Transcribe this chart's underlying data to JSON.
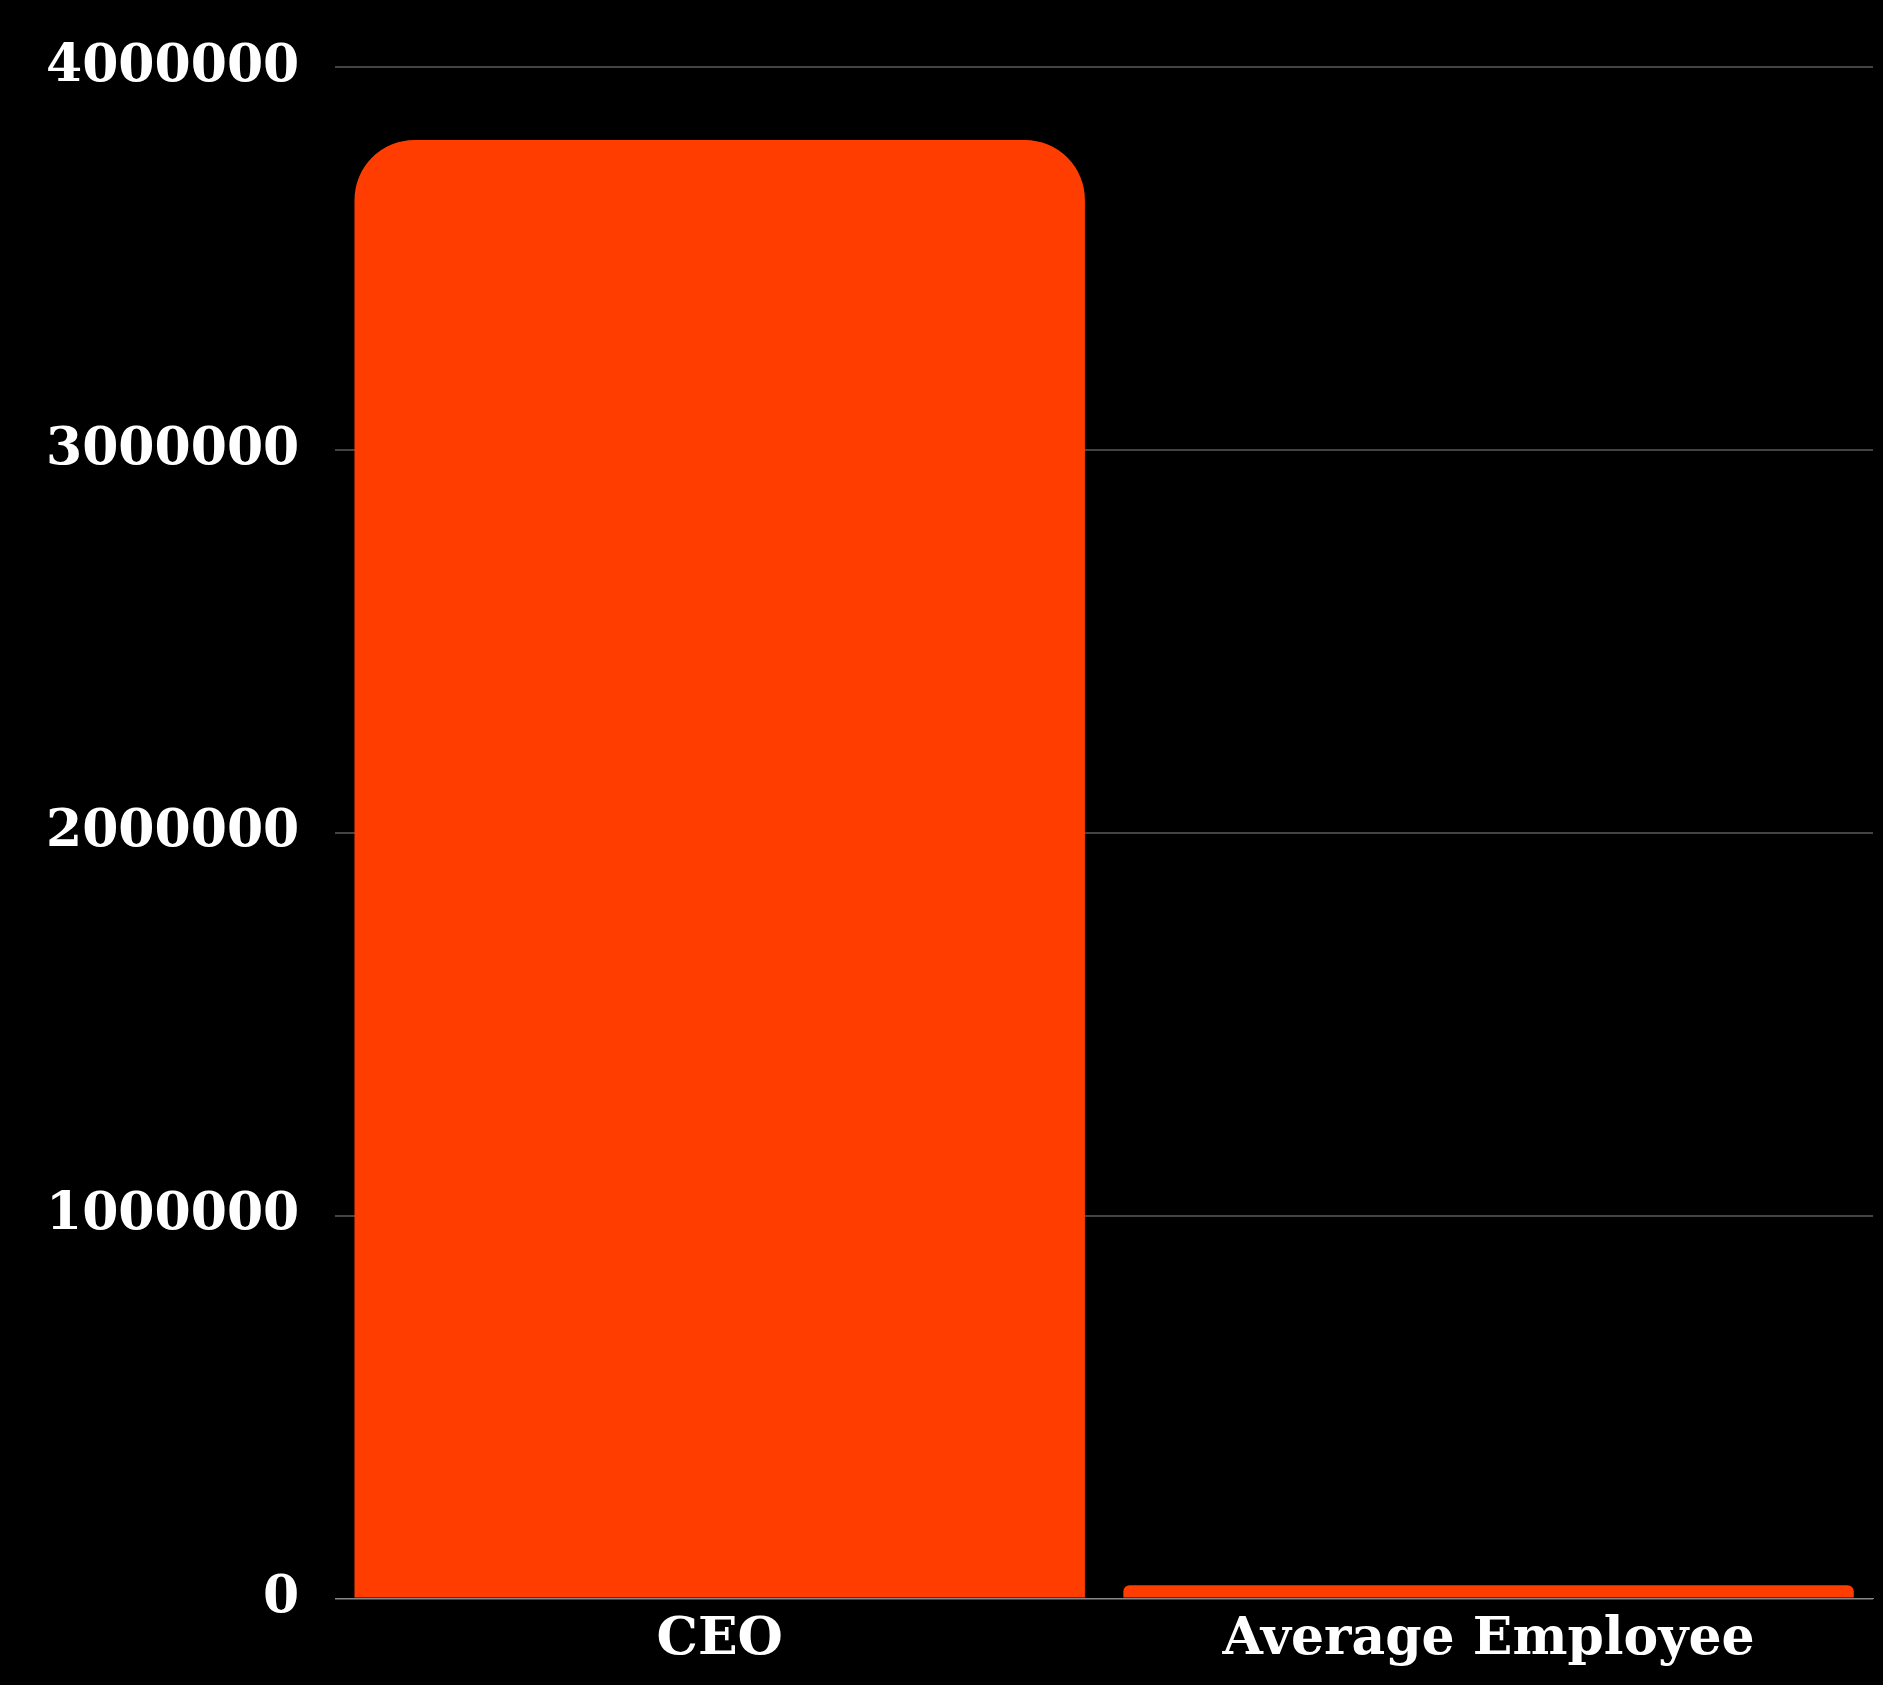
{
  "chart_data": {
    "type": "bar",
    "categories": [
      "CEO",
      "Average Employee"
    ],
    "values": [
      3810000,
      35000
    ],
    "color": "#ff3d00",
    "ylim": [
      0,
      4000000
    ],
    "yticks": [
      0,
      1000000,
      2000000,
      3000000,
      4000000
    ],
    "grid": "y",
    "legend": false
  }
}
